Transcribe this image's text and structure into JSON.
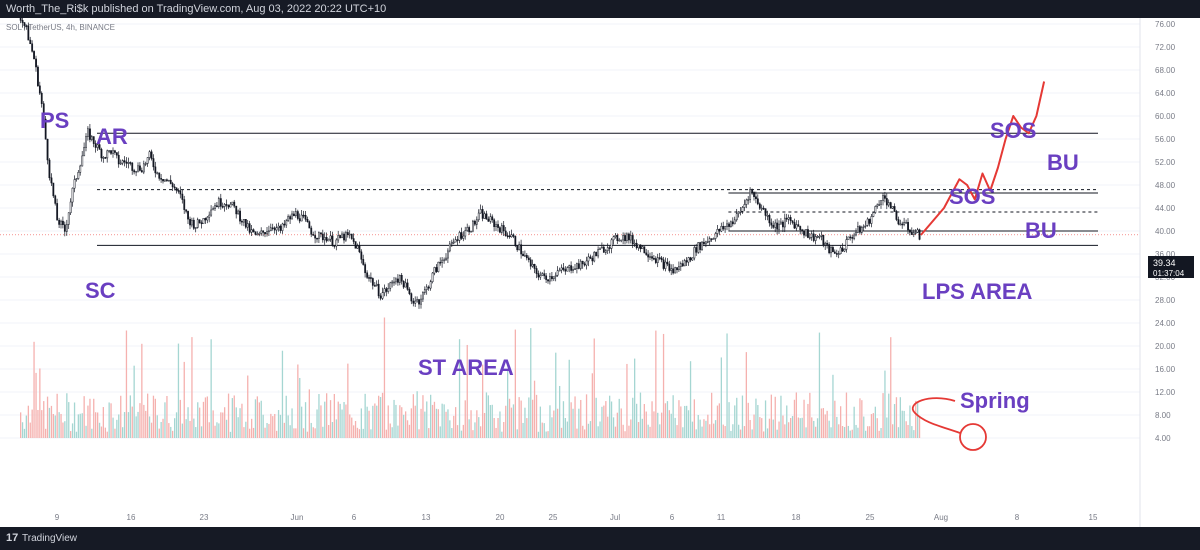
{
  "header": {
    "publisher_line": "Worth_The_Ri$k published on TradingView.com, Aug 03, 2022 20:22 UTC+10",
    "symbol_line": "SOL / TetherUS, 4h, BINANCE"
  },
  "footer": {
    "logo": "17",
    "brand": "TradingView"
  },
  "chart_data": {
    "type": "candlestick",
    "y_axis": {
      "ticks": [
        "76.00",
        "72.00",
        "68.00",
        "64.00",
        "60.00",
        "56.00",
        "52.00",
        "48.00",
        "44.00",
        "40.00",
        "36.00",
        "32.00",
        "28.00",
        "24.00",
        "20.00",
        "16.00",
        "12.00",
        "8.00",
        "4.00"
      ],
      "price_range": [
        36,
        76
      ],
      "volume_range": [
        4,
        24
      ],
      "current_price": "39.34",
      "countdown": "01:37:04"
    },
    "x_axis": {
      "ticks": [
        "9",
        "16",
        "23",
        "Jun",
        "6",
        "13",
        "20",
        "25",
        "Jul",
        "6",
        "11",
        "18",
        "25",
        "Aug",
        "8",
        "15"
      ]
    },
    "price_path": [
      [
        0,
        78
      ],
      [
        1,
        75
      ],
      [
        2,
        70
      ],
      [
        3,
        62
      ],
      [
        4,
        50
      ],
      [
        5,
        42
      ],
      [
        6,
        40
      ],
      [
        7,
        47
      ],
      [
        8,
        52
      ],
      [
        9,
        57
      ],
      [
        10,
        55
      ],
      [
        11,
        53
      ],
      [
        12,
        54
      ],
      [
        13,
        52
      ],
      [
        14,
        52
      ],
      [
        15,
        51
      ],
      [
        16,
        51
      ],
      [
        17,
        53
      ],
      [
        18,
        50
      ],
      [
        19,
        49
      ],
      [
        20,
        48
      ],
      [
        21,
        46
      ],
      [
        22,
        42
      ],
      [
        23,
        41
      ],
      [
        24,
        42
      ],
      [
        25,
        44
      ],
      [
        26,
        45
      ],
      [
        27,
        45
      ],
      [
        28,
        44
      ],
      [
        29,
        42
      ],
      [
        30,
        40
      ],
      [
        31,
        39
      ],
      [
        32,
        40
      ],
      [
        33,
        41
      ],
      [
        34,
        40
      ],
      [
        35,
        42
      ],
      [
        36,
        43
      ],
      [
        37,
        42
      ],
      [
        38,
        40
      ],
      [
        39,
        39
      ],
      [
        40,
        39
      ],
      [
        41,
        38
      ],
      [
        42,
        39
      ],
      [
        43,
        39
      ],
      [
        44,
        37
      ],
      [
        45,
        33
      ],
      [
        46,
        31
      ],
      [
        47,
        29
      ],
      [
        48,
        30
      ],
      [
        49,
        32
      ],
      [
        50,
        31
      ],
      [
        51,
        28
      ],
      [
        52,
        28
      ],
      [
        53,
        30
      ],
      [
        54,
        33
      ],
      [
        55,
        35
      ],
      [
        56,
        37
      ],
      [
        57,
        39
      ],
      [
        58,
        40
      ],
      [
        59,
        41
      ],
      [
        60,
        43
      ],
      [
        61,
        42
      ],
      [
        62,
        41
      ],
      [
        63,
        40
      ],
      [
        64,
        39
      ],
      [
        65,
        37
      ],
      [
        66,
        35
      ],
      [
        67,
        33
      ],
      [
        68,
        32
      ],
      [
        69,
        32
      ],
      [
        70,
        33
      ],
      [
        71,
        33
      ],
      [
        72,
        34
      ],
      [
        73,
        34
      ],
      [
        74,
        35
      ],
      [
        75,
        36
      ],
      [
        76,
        37
      ],
      [
        77,
        38
      ],
      [
        78,
        39
      ],
      [
        79,
        39
      ],
      [
        80,
        38
      ],
      [
        81,
        37
      ],
      [
        82,
        36
      ],
      [
        83,
        35
      ],
      [
        84,
        34
      ],
      [
        85,
        33
      ],
      [
        86,
        34
      ],
      [
        87,
        35
      ],
      [
        88,
        37
      ],
      [
        89,
        38
      ],
      [
        90,
        39
      ],
      [
        91,
        40
      ],
      [
        92,
        41
      ],
      [
        93,
        42
      ],
      [
        94,
        44
      ],
      [
        95,
        47
      ],
      [
        96,
        45
      ],
      [
        97,
        43
      ],
      [
        98,
        41
      ],
      [
        99,
        41
      ],
      [
        100,
        42
      ],
      [
        101,
        41
      ],
      [
        102,
        40
      ],
      [
        103,
        39
      ],
      [
        104,
        39
      ],
      [
        105,
        37
      ],
      [
        106,
        36
      ],
      [
        107,
        37
      ],
      [
        108,
        39
      ],
      [
        109,
        40
      ],
      [
        110,
        41
      ],
      [
        111,
        43
      ],
      [
        112,
        46
      ],
      [
        113,
        45
      ],
      [
        114,
        42
      ],
      [
        115,
        41
      ],
      [
        116,
        40
      ],
      [
        117,
        39.3
      ]
    ],
    "projection": [
      [
        117,
        39.3
      ],
      [
        120,
        44
      ],
      [
        122,
        49
      ],
      [
        123,
        48
      ],
      [
        124,
        45.5
      ],
      [
        125,
        50
      ],
      [
        126,
        47
      ],
      [
        127,
        51
      ],
      [
        128,
        56
      ],
      [
        129,
        60
      ],
      [
        130,
        58
      ],
      [
        131,
        57
      ],
      [
        132,
        60
      ],
      [
        133,
        66
      ]
    ],
    "horizontal_lines": [
      {
        "price": 57,
        "style": "solid",
        "from": 10,
        "to": 140
      },
      {
        "price": 37.5,
        "style": "solid",
        "from": 10,
        "to": 140
      },
      {
        "price": 47.2,
        "style": "dashed",
        "from": 10,
        "to": 140
      },
      {
        "price": 46.6,
        "style": "solid",
        "from": 92,
        "to": 140
      },
      {
        "price": 43.3,
        "style": "dashed",
        "from": 92,
        "to": 140
      },
      {
        "price": 40,
        "style": "solid",
        "from": 92,
        "to": 140
      }
    ],
    "annotations": [
      {
        "label": "PS",
        "color": "#6a3fc1"
      },
      {
        "label": "AR",
        "color": "#6a3fc1"
      },
      {
        "label": "SC",
        "color": "#6a3fc1"
      },
      {
        "label": "ST AREA",
        "color": "#6a3fc1"
      },
      {
        "label": "LPS AREA",
        "color": "#6a3fc1"
      },
      {
        "label": "SOS",
        "color": "#6a3fc1"
      },
      {
        "label": "BU",
        "color": "#6a3fc1"
      },
      {
        "label": "SOS",
        "color": "#6a3fc1"
      },
      {
        "label": "BU",
        "color": "#6a3fc1"
      },
      {
        "label": "Spring",
        "color": "#6a3fc1"
      }
    ],
    "colors": {
      "up": "#26a69a",
      "down": "#ef5350",
      "candle": "#131722",
      "annotation": "#6a3fc1",
      "projection": "#e53935",
      "axis_text": "#787b86",
      "grid": "#f0f3fa",
      "price_label_bg": "#131722"
    }
  }
}
